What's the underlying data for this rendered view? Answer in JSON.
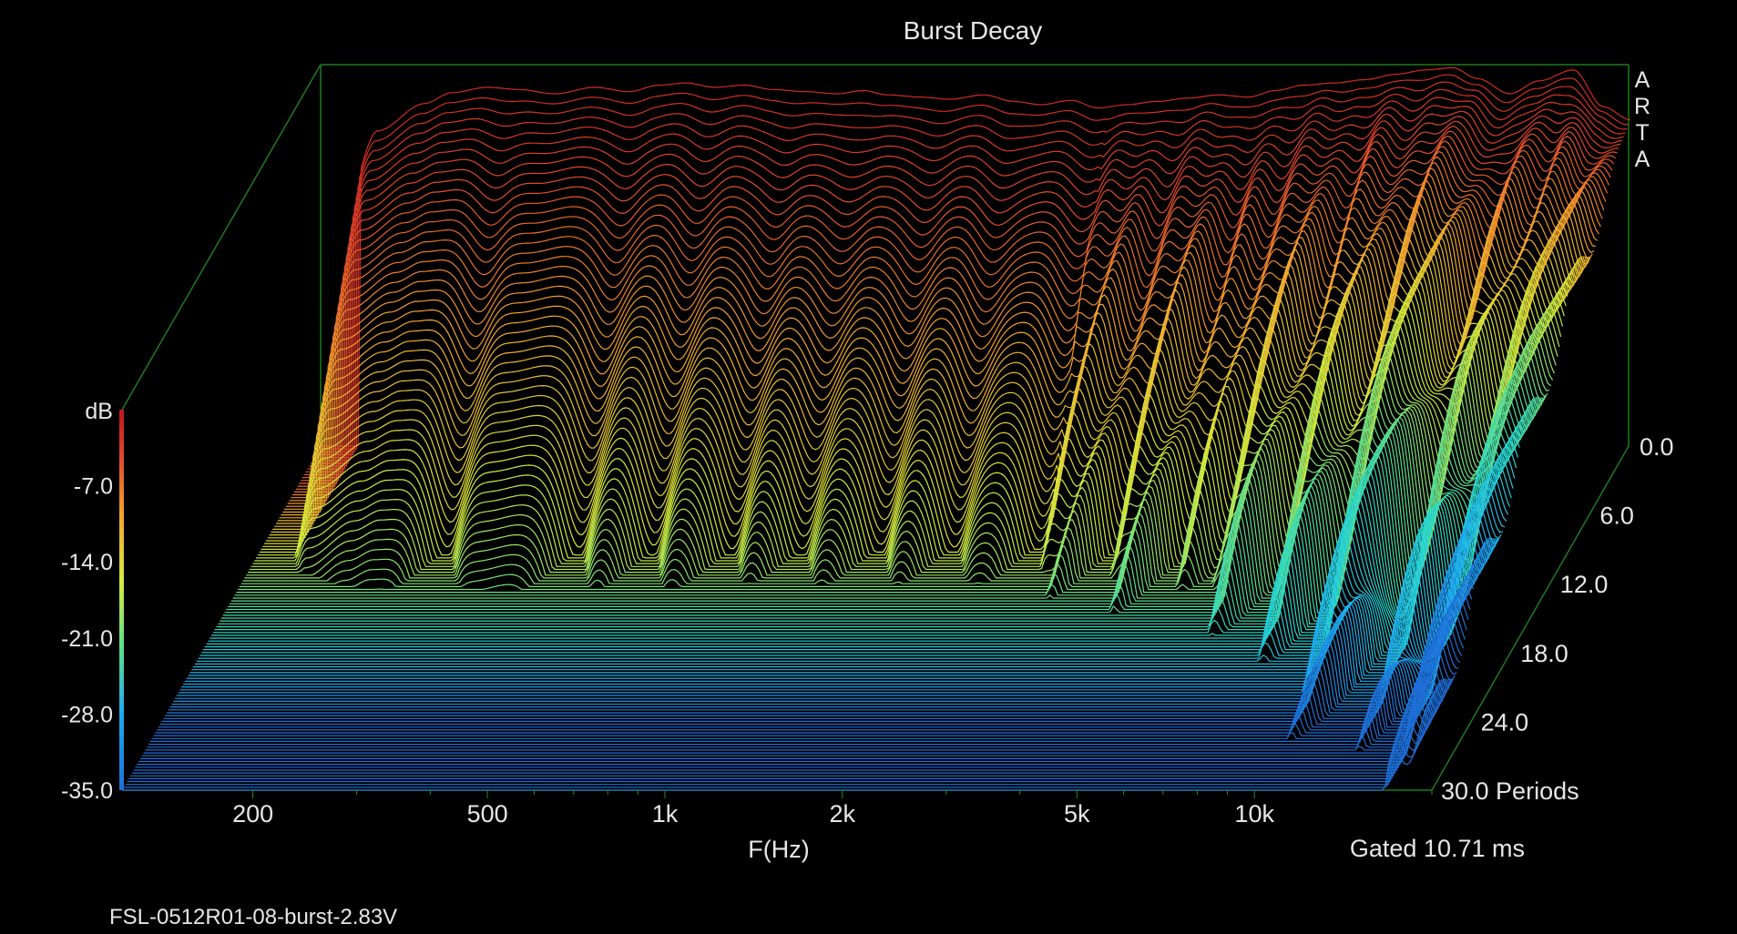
{
  "chart_data": {
    "type": "waterfall",
    "title": "Burst Decay",
    "watermark": [
      "A",
      "R",
      "T",
      "A"
    ],
    "xlabel": "F(Hz)",
    "x_scale": "log",
    "x_ticks": [
      {
        "value": 200,
        "label": "200"
      },
      {
        "value": 500,
        "label": "500"
      },
      {
        "value": 1000,
        "label": "1k"
      },
      {
        "value": 2000,
        "label": "2k"
      },
      {
        "value": 5000,
        "label": "5k"
      },
      {
        "value": 10000,
        "label": "10k"
      }
    ],
    "xlim": [
      120,
      20000
    ],
    "zlabel": "dB",
    "zlim": [
      -35,
      0
    ],
    "z_ticks": [
      {
        "value": -7,
        "label": "-7.0"
      },
      {
        "value": -14,
        "label": "-14.0"
      },
      {
        "value": -21,
        "label": "-21.0"
      },
      {
        "value": -28,
        "label": "-28.0"
      },
      {
        "value": -35,
        "label": "-35.0"
      }
    ],
    "depth_label": "Periods",
    "depth_ticks": [
      {
        "value": 0,
        "label": "0.0"
      },
      {
        "value": 6,
        "label": "6.0"
      },
      {
        "value": 12,
        "label": "12.0"
      },
      {
        "value": 18,
        "label": "18.0"
      },
      {
        "value": 24,
        "label": "24.0"
      },
      {
        "value": 30,
        "label": "30.0 Periods"
      }
    ],
    "depth_range": [
      0,
      30
    ],
    "gated_text": "Gated 10.71 ms",
    "colormap": [
      "#1e6fd8",
      "#1eaaf0",
      "#27d6d0",
      "#5fe08a",
      "#d6ea3c",
      "#f2a52e",
      "#e0452b",
      "#c0151d"
    ],
    "axis_color": "#1f7a1f",
    "initial_response": {
      "freqs": [
        130,
        150,
        180,
        200,
        230,
        260,
        300,
        350,
        400,
        450,
        500,
        560,
        630,
        700,
        800,
        900,
        1000,
        1100,
        1250,
        1400,
        1600,
        1800,
        2000,
        2250,
        2500,
        2800,
        3150,
        3550,
        4000,
        4500,
        5000,
        5600,
        6300,
        7100,
        8000,
        9000,
        10000,
        11000,
        12500,
        14000,
        16000,
        18000,
        20000
      ],
      "db": [
        -14,
        -6,
        -3.5,
        -2.5,
        -2,
        -2.2,
        -2.6,
        -2,
        -2.4,
        -1.8,
        -1.6,
        -2,
        -1.8,
        -2.2,
        -2.4,
        -2.6,
        -2.3,
        -2.7,
        -2.9,
        -3.1,
        -2.7,
        -3.3,
        -3.6,
        -3.2,
        -3.9,
        -3.6,
        -3.3,
        -3.0,
        -2.7,
        -2.9,
        -2.3,
        -1.8,
        -1.6,
        -1.3,
        -0.8,
        -0.4,
        -0.2,
        -1.2,
        -2.6,
        -1.4,
        -0.4,
        -3.8,
        -5.0
      ]
    },
    "decay_notches_hz": [
      250,
      420,
      560,
      760,
      1000,
      1350,
      1800,
      2500,
      3400,
      4500,
      5400,
      7000,
      9000,
      12500,
      15500
    ]
  },
  "footer": {
    "filename": "FSL-0512R01-08-burst-2.83V"
  }
}
